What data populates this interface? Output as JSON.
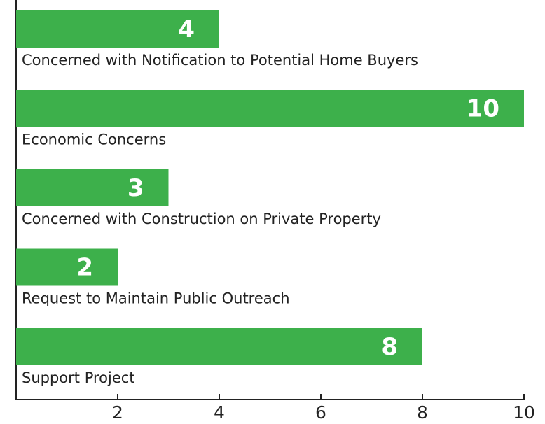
{
  "chart_data": {
    "type": "bar",
    "orientation": "horizontal",
    "categories": [
      "Concerned with Notification to Potential Home Buyers",
      "Economic Concerns",
      "Concerned with Construction on Private Property",
      "Request to Maintain Public Outreach",
      "Support Project"
    ],
    "values": [
      4,
      10,
      3,
      2,
      8
    ],
    "color": "#3db04b",
    "xlim": [
      0,
      10
    ],
    "xticks": [
      2,
      4,
      6,
      8,
      10
    ],
    "grid": false
  }
}
